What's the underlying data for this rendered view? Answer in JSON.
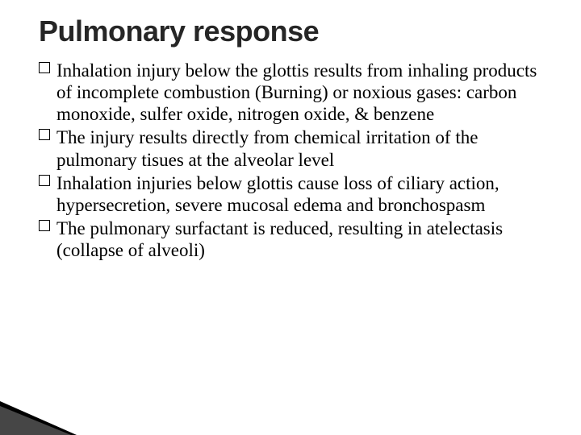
{
  "slide": {
    "title": "Pulmonary response",
    "title_fontsize": 36,
    "title_color": "#262626",
    "body_fontsize": 23,
    "body_color": "#000000",
    "body_lineheight": 1.18,
    "background": "#ffffff",
    "bullets": [
      "Inhalation injury below the glottis results from inhaling products of incomplete combustion (Burning) or noxious gases: carbon monoxide, sulfer oxide, nitrogen oxide, & benzene",
      "The injury results directly from chemical irritation of the pulmonary tisues at the alveolar level",
      "Inhalation injuries below glottis cause loss of ciliary action, hypersecretion, severe mucosal edema and bronchospasm",
      "The pulmonary surfactant is reduced, resulting in atelectasis (collapse of alveoli)"
    ],
    "bullet_marker": "hollow-square",
    "corner_accent": {
      "primary": "#000000",
      "secondary": "#808080"
    }
  }
}
